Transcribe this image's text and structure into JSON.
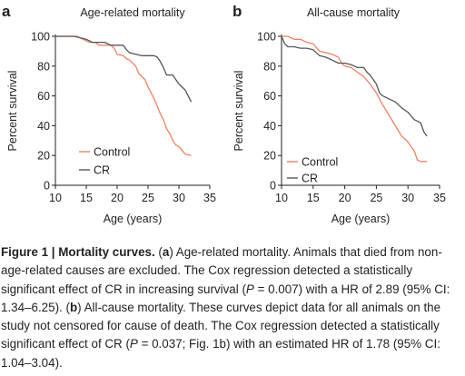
{
  "chart_data": [
    {
      "type": "line",
      "panel": "a",
      "title": "Age-related mortality",
      "xlabel": "Age (years)",
      "ylabel": "Percent survival",
      "xlim": [
        10,
        35
      ],
      "ylim": [
        0,
        100
      ],
      "xticks": [
        10,
        15,
        20,
        25,
        30,
        35
      ],
      "yticks": [
        0,
        20,
        40,
        60,
        80,
        100
      ],
      "legend_position": "lower-left",
      "series": [
        {
          "name": "Control",
          "color": "#f08060",
          "points": [
            [
              10,
              100
            ],
            [
              12,
              100
            ],
            [
              13.5,
              100
            ],
            [
              14.5,
              98
            ],
            [
              15.5,
              96
            ],
            [
              16.5,
              96
            ],
            [
              17,
              94
            ],
            [
              19,
              94
            ],
            [
              19.5,
              92
            ],
            [
              20,
              88
            ],
            [
              21,
              87
            ],
            [
              21.5,
              85
            ],
            [
              22,
              84
            ],
            [
              23,
              80
            ],
            [
              23.5,
              75
            ],
            [
              24.5,
              71
            ],
            [
              25,
              66
            ],
            [
              25.5,
              62
            ],
            [
              26,
              58
            ],
            [
              26.5,
              53
            ],
            [
              27,
              48
            ],
            [
              27.5,
              44
            ],
            [
              28,
              38
            ],
            [
              28.5,
              35
            ],
            [
              29,
              30
            ],
            [
              29.5,
              27
            ],
            [
              30,
              26
            ],
            [
              31,
              21
            ],
            [
              32,
              20
            ]
          ]
        },
        {
          "name": "CR",
          "color": "#555555",
          "points": [
            [
              10,
              100
            ],
            [
              12,
              100
            ],
            [
              13,
              100
            ],
            [
              14,
              99
            ],
            [
              15,
              98
            ],
            [
              16,
              96
            ],
            [
              17,
              96
            ],
            [
              18,
              96
            ],
            [
              19,
              94
            ],
            [
              21,
              94
            ],
            [
              21.5,
              91
            ],
            [
              22,
              89
            ],
            [
              23,
              88
            ],
            [
              24,
              87
            ],
            [
              25,
              87
            ],
            [
              26,
              87
            ],
            [
              26.5,
              86
            ],
            [
              27,
              83
            ],
            [
              27.5,
              79
            ],
            [
              28,
              74
            ],
            [
              29,
              74
            ],
            [
              29.5,
              71
            ],
            [
              30,
              68
            ],
            [
              31,
              64
            ],
            [
              32,
              56
            ]
          ]
        }
      ]
    },
    {
      "type": "line",
      "panel": "b",
      "title": "All-cause mortality",
      "xlabel": "Age (years)",
      "ylabel": "Percent survival",
      "xlim": [
        10,
        35
      ],
      "ylim": [
        0,
        100
      ],
      "xticks": [
        10,
        15,
        20,
        25,
        30,
        35
      ],
      "yticks": [
        0,
        20,
        40,
        60,
        80,
        100
      ],
      "legend_position": "lower-left",
      "series": [
        {
          "name": "Control",
          "color": "#f08060",
          "points": [
            [
              10,
              100
            ],
            [
              11,
              100
            ],
            [
              12,
              98
            ],
            [
              13,
              98
            ],
            [
              14,
              96
            ],
            [
              15,
              95
            ],
            [
              16,
              90
            ],
            [
              17,
              89
            ],
            [
              18,
              88
            ],
            [
              19,
              86
            ],
            [
              19.5,
              82
            ],
            [
              20,
              80
            ],
            [
              21,
              79
            ],
            [
              22,
              76
            ],
            [
              23,
              73
            ],
            [
              24,
              68
            ],
            [
              25,
              62
            ],
            [
              26,
              54
            ],
            [
              27,
              47
            ],
            [
              28,
              40
            ],
            [
              29,
              33
            ],
            [
              30,
              29
            ],
            [
              31,
              23
            ],
            [
              31.5,
              17
            ],
            [
              32,
              16
            ],
            [
              33,
              16
            ]
          ]
        },
        {
          "name": "CR",
          "color": "#555555",
          "points": [
            [
              10,
              100
            ],
            [
              10.5,
              95
            ],
            [
              11,
              93
            ],
            [
              12,
              93
            ],
            [
              13,
              92
            ],
            [
              14,
              92
            ],
            [
              15,
              91
            ],
            [
              16,
              87
            ],
            [
              17,
              86
            ],
            [
              18,
              84
            ],
            [
              19,
              82
            ],
            [
              20,
              82
            ],
            [
              21,
              81
            ],
            [
              22,
              79
            ],
            [
              23,
              79
            ],
            [
              23.5,
              76
            ],
            [
              24,
              74
            ],
            [
              25,
              68
            ],
            [
              25.5,
              62
            ],
            [
              26,
              60
            ],
            [
              27,
              58
            ],
            [
              28,
              56
            ],
            [
              29,
              52
            ],
            [
              30,
              49
            ],
            [
              31,
              44
            ],
            [
              32,
              42
            ],
            [
              32.5,
              36
            ],
            [
              33,
              33
            ]
          ]
        }
      ]
    }
  ],
  "caption": {
    "label": "Figure 1 | Mortality curves.",
    "part_a_letter": "a",
    "part_a_text": "Age-related mortality. Animals that died from non-age-related causes are excluded. The Cox regression detected a statistically significant effect of CR in increasing survival (",
    "p_symbol_a": "P",
    "part_a_p": " = 0.007) with a HR of 2.89 (95% CI: 1.34–6.25). ",
    "part_b_letter": "b",
    "part_b_text": "All-cause mortality. These curves depict data for all animals on the study not censored for cause of death. The Cox regression detected a statistically significant effect of CR (",
    "p_symbol_b": "P",
    "part_b_p": " = 0.037; Fig. 1b) with an estimated HR of 1.78 (95% CI: 1.04–3.04)."
  }
}
